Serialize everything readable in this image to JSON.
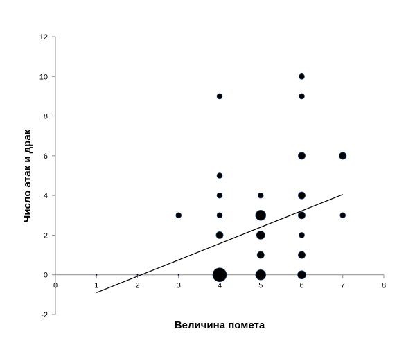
{
  "chart_data": {
    "type": "scatter",
    "title": "",
    "xlabel": "Величина помета",
    "ylabel": "Число атак и драк",
    "xlim": [
      0,
      8
    ],
    "ylim": [
      -2,
      12
    ],
    "x_ticks": [
      0,
      1,
      2,
      3,
      4,
      5,
      6,
      7,
      8
    ],
    "y_ticks": [
      -2,
      0,
      2,
      4,
      6,
      8,
      10,
      12
    ],
    "grid": false,
    "legend": "none",
    "point_color": "#000000",
    "point_edge_color": "#1f3a6b",
    "line_color": "#000000",
    "series": [
      {
        "points": [
          {
            "x": 1,
            "y": 0,
            "weight": 0
          },
          {
            "x": 2,
            "y": 0,
            "weight": 0
          },
          {
            "x": 3,
            "y": 3,
            "weight": 1
          },
          {
            "x": 3,
            "y": 0,
            "weight": 0
          },
          {
            "x": 4,
            "y": 9,
            "weight": 1
          },
          {
            "x": 4,
            "y": 5,
            "weight": 1
          },
          {
            "x": 4,
            "y": 4,
            "weight": 1
          },
          {
            "x": 4,
            "y": 3,
            "weight": 1
          },
          {
            "x": 4,
            "y": 2,
            "weight": 2
          },
          {
            "x": 4,
            "y": 0,
            "weight": 10
          },
          {
            "x": 5,
            "y": 4,
            "weight": 1
          },
          {
            "x": 5,
            "y": 3,
            "weight": 5
          },
          {
            "x": 5,
            "y": 2,
            "weight": 3
          },
          {
            "x": 5,
            "y": 1,
            "weight": 2
          },
          {
            "x": 5,
            "y": 0,
            "weight": 5
          },
          {
            "x": 6,
            "y": 10,
            "weight": 1
          },
          {
            "x": 6,
            "y": 9,
            "weight": 1
          },
          {
            "x": 6,
            "y": 6,
            "weight": 2
          },
          {
            "x": 6,
            "y": 4,
            "weight": 2
          },
          {
            "x": 6,
            "y": 3,
            "weight": 2
          },
          {
            "x": 6,
            "y": 2,
            "weight": 1
          },
          {
            "x": 6,
            "y": 1,
            "weight": 2
          },
          {
            "x": 6,
            "y": 0,
            "weight": 3
          },
          {
            "x": 7,
            "y": 6,
            "weight": 2
          },
          {
            "x": 7,
            "y": 3,
            "weight": 1
          }
        ]
      }
    ],
    "trendline": {
      "x": [
        1,
        7
      ],
      "y": [
        -0.9,
        4.05
      ]
    }
  }
}
